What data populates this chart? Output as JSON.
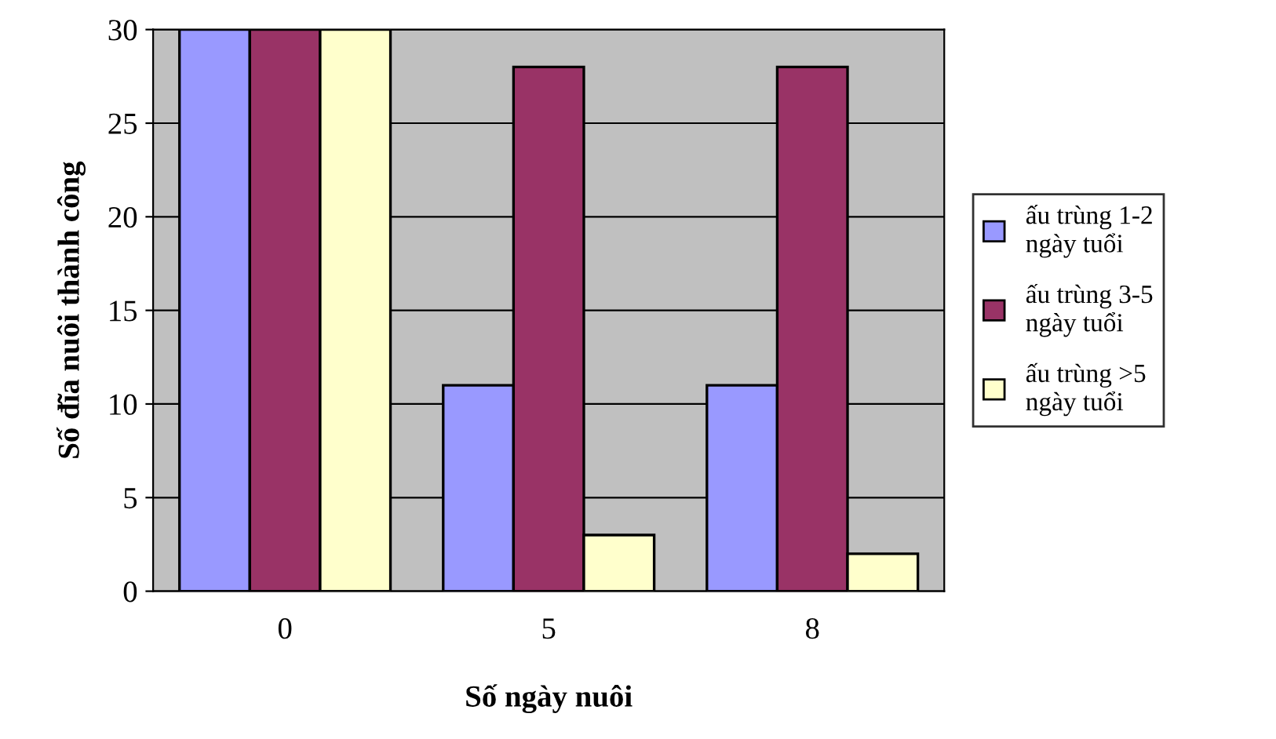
{
  "chart_data": {
    "type": "bar",
    "xlabel": "Số ngày nuôi",
    "ylabel": "Số đĩa nuôi thành công",
    "categories": [
      "0",
      "5",
      "8"
    ],
    "series": [
      {
        "name": "ấu trùng 1-2\nngày tuổi",
        "color": "#9999ff",
        "values": [
          30,
          11,
          11
        ]
      },
      {
        "name": "ấu trùng 3-5\nngày tuổi",
        "color": "#993366",
        "values": [
          30,
          28,
          28
        ]
      },
      {
        "name": "ấu trùng >5\nngày tuổi",
        "color": "#ffffcc",
        "values": [
          30,
          3,
          2
        ]
      }
    ],
    "ylim": [
      0,
      30
    ],
    "yticks": [
      0,
      5,
      10,
      15,
      20,
      25,
      30
    ],
    "grid": "y",
    "legend": "right"
  }
}
